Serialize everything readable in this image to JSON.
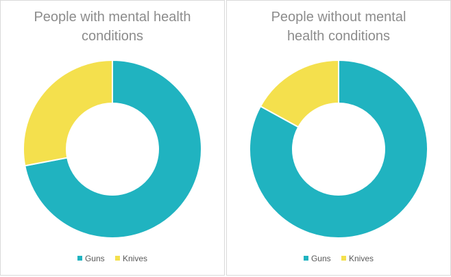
{
  "colors": {
    "guns": "#20b3c0",
    "knives": "#f4e04d",
    "border": "#ffffff"
  },
  "chart_data": [
    {
      "type": "pie",
      "variant": "donut",
      "title_lines": [
        "People with mental health",
        "conditions"
      ],
      "categories": [
        "Guns",
        "Knives"
      ],
      "values": [
        72,
        28
      ],
      "legend": [
        "Guns",
        "Knives"
      ],
      "legend_position": "bottom"
    },
    {
      "type": "pie",
      "variant": "donut",
      "title_lines": [
        "People without mental",
        "health conditions"
      ],
      "categories": [
        "Guns",
        "Knives"
      ],
      "values": [
        83,
        17
      ],
      "legend": [
        "Guns",
        "Knives"
      ],
      "legend_position": "bottom"
    }
  ]
}
